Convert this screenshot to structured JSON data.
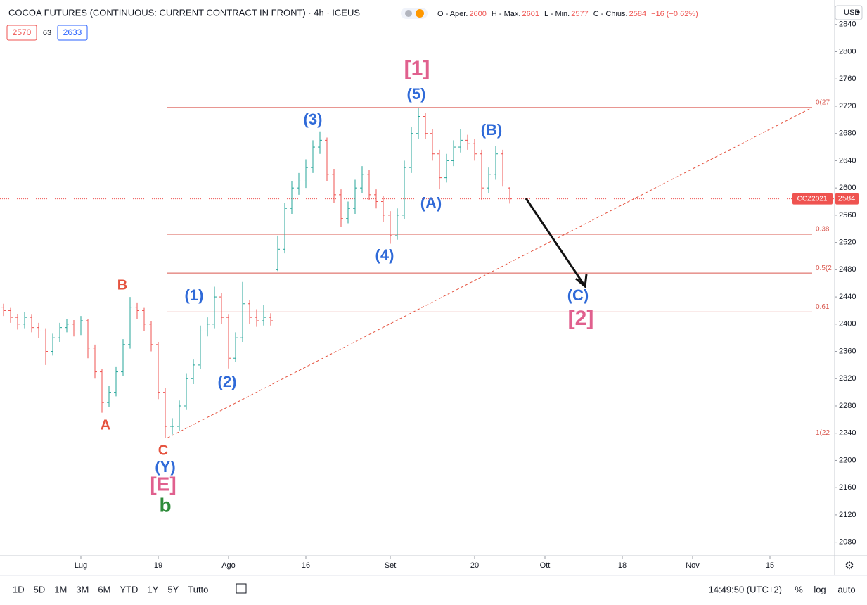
{
  "chart_data": {
    "type": "ohlc",
    "title": "COCOA FUTURES (CONTINUOUS: CURRENT CONTRACT IN FRONT) · 4h · ICEUS",
    "legend_items": [
      {
        "key": "O - Aper.",
        "value": "2600"
      },
      {
        "key": "H - Max.",
        "value": "2601"
      },
      {
        "key": "L - Min.",
        "value": "2577"
      },
      {
        "key": "C - Chius.",
        "value": "2584"
      }
    ],
    "change": "−16 (−0.62%)",
    "bid": "2570",
    "spread": "63",
    "ask": "2633",
    "currency": "USD",
    "symbol_tag": "CCZ2021",
    "last_price": 2584,
    "up_color": "#26a69a",
    "down_color": "#ef5350",
    "open": [
      2425,
      2420,
      2410,
      2400,
      2410,
      2395,
      2390,
      2360,
      2380,
      2395,
      2400,
      2390,
      2405,
      2365,
      2330,
      2285,
      2300,
      2330,
      2370,
      2425,
      2420,
      2400,
      2370,
      2300,
      2250,
      2250,
      2280,
      2320,
      2340,
      2390,
      2400,
      2440,
      2410,
      2350,
      2380,
      2430,
      2410,
      2405,
      2410,
      2480,
      2510,
      2570,
      2600,
      2610,
      2630,
      2660,
      2670,
      2620,
      2590,
      2555,
      2570,
      2600,
      2620,
      2590,
      2580,
      2560,
      2530,
      2560,
      2630,
      2680,
      2705,
      2680,
      2650,
      2615,
      2640,
      2660,
      2670,
      2665,
      2650,
      2600,
      2620,
      2650,
      2600
    ],
    "high": [
      2430,
      2424,
      2415,
      2418,
      2414,
      2402,
      2394,
      2386,
      2402,
      2408,
      2406,
      2412,
      2408,
      2370,
      2334,
      2310,
      2338,
      2378,
      2440,
      2432,
      2424,
      2404,
      2374,
      2306,
      2262,
      2288,
      2328,
      2348,
      2398,
      2410,
      2455,
      2446,
      2414,
      2388,
      2462,
      2436,
      2422,
      2428,
      2416,
      2530,
      2578,
      2610,
      2622,
      2642,
      2670,
      2683,
      2674,
      2628,
      2598,
      2580,
      2612,
      2632,
      2626,
      2598,
      2588,
      2566,
      2570,
      2640,
      2690,
      2718,
      2710,
      2686,
      2656,
      2650,
      2670,
      2686,
      2678,
      2672,
      2656,
      2630,
      2662,
      2656,
      2601
    ],
    "low": [
      2412,
      2402,
      2392,
      2394,
      2388,
      2380,
      2340,
      2354,
      2374,
      2388,
      2382,
      2384,
      2350,
      2320,
      2270,
      2278,
      2294,
      2324,
      2364,
      2408,
      2390,
      2360,
      2290,
      2233,
      2238,
      2244,
      2274,
      2312,
      2334,
      2382,
      2394,
      2400,
      2335,
      2344,
      2374,
      2400,
      2396,
      2398,
      2398,
      2478,
      2504,
      2562,
      2590,
      2600,
      2622,
      2650,
      2610,
      2578,
      2543,
      2548,
      2562,
      2592,
      2582,
      2570,
      2550,
      2518,
      2524,
      2554,
      2622,
      2672,
      2672,
      2640,
      2598,
      2608,
      2632,
      2652,
      2656,
      2640,
      2582,
      2592,
      2612,
      2602,
      2577
    ],
    "close": [
      2420,
      2410,
      2400,
      2410,
      2395,
      2390,
      2360,
      2380,
      2395,
      2400,
      2390,
      2405,
      2365,
      2330,
      2285,
      2300,
      2330,
      2370,
      2425,
      2420,
      2400,
      2370,
      2300,
      2250,
      2250,
      2280,
      2320,
      2340,
      2390,
      2400,
      2440,
      2410,
      2350,
      2380,
      2430,
      2410,
      2405,
      2410,
      2405,
      2510,
      2570,
      2600,
      2610,
      2630,
      2660,
      2670,
      2620,
      2590,
      2555,
      2570,
      2600,
      2620,
      2590,
      2580,
      2560,
      2530,
      2560,
      2630,
      2680,
      2705,
      2680,
      2650,
      2615,
      2640,
      2660,
      2670,
      2665,
      2650,
      2600,
      2620,
      2650,
      2610,
      2584
    ],
    "xlim": [
      -0.5,
      118
    ],
    "xticks": [
      {
        "value": 11,
        "label": "Lug"
      },
      {
        "value": 22,
        "label": "19"
      },
      {
        "value": 32,
        "label": "Ago"
      },
      {
        "value": 43,
        "label": "16"
      },
      {
        "value": 55,
        "label": "Set"
      },
      {
        "value": 67,
        "label": "20"
      },
      {
        "value": 77,
        "label": "Ott"
      },
      {
        "value": 88,
        "label": "18"
      },
      {
        "value": 98,
        "label": "Nov"
      },
      {
        "value": 109,
        "label": "15"
      }
    ],
    "ylim": [
      2847,
      2060
    ],
    "yticks": [
      2840,
      2800,
      2760,
      2720,
      2680,
      2640,
      2600,
      2560,
      2520,
      2480,
      2440,
      2400,
      2360,
      2320,
      2280,
      2240,
      2200,
      2160,
      2120,
      2080
    ],
    "grid": false,
    "fib_levels": [
      {
        "value": 2718,
        "label": "0(27"
      },
      {
        "value": 2532,
        "label": "0.38"
      },
      {
        "value": 2475,
        "label": "0.5(2"
      },
      {
        "value": 2418,
        "label": "0.61"
      },
      {
        "value": 2233,
        "label": "1(22"
      }
    ],
    "annotations": [
      {
        "text": "[1]",
        "color": "#e0608e"
      },
      {
        "text": "(5)",
        "color": "#2f6ad8"
      },
      {
        "text": "(3)",
        "color": "#2f6ad8"
      },
      {
        "text": "(B)",
        "color": "#2f6ad8"
      },
      {
        "text": "(A)",
        "color": "#2f6ad8"
      },
      {
        "text": "(4)",
        "color": "#2f6ad8"
      },
      {
        "text": "(1)",
        "color": "#2f6ad8"
      },
      {
        "text": "(2)",
        "color": "#2f6ad8"
      },
      {
        "text": "B",
        "color": "#e5533f"
      },
      {
        "text": "A",
        "color": "#e5533f"
      },
      {
        "text": "C",
        "color": "#e5533f"
      },
      {
        "text": "(Y)",
        "color": "#2f6ad8"
      },
      {
        "text": "[E]",
        "color": "#e0608e"
      },
      {
        "text": "b",
        "color": "#2e8b3a"
      },
      {
        "text": "(C)",
        "color": "#2f6ad8"
      },
      {
        "text": "[2]",
        "color": "#e0608e"
      }
    ]
  },
  "toolbar": {
    "ranges": [
      "1D",
      "5D",
      "1M",
      "3M",
      "6M",
      "YTD",
      "1Y",
      "5Y",
      "Tutto"
    ],
    "clock": "14:49:50 (UTC+2)",
    "options": [
      "%",
      "log",
      "auto"
    ]
  }
}
